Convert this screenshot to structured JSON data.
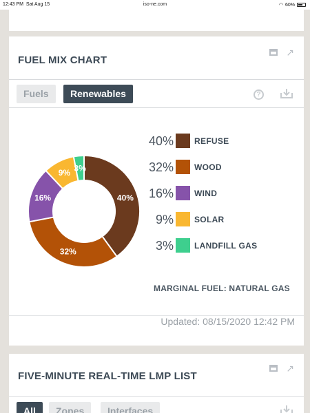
{
  "status_bar": {
    "time": "12:43 PM",
    "date": "Sat Aug 15",
    "url": "iso-ne.com",
    "battery": "60%"
  },
  "fuel_mix": {
    "title": "FUEL MIX CHART",
    "tabs": [
      {
        "label": "Fuels",
        "active": false
      },
      {
        "label": "Renewables",
        "active": true
      }
    ],
    "help_symbol": "?",
    "marginal_fuel": "MARGINAL FUEL: NATURAL GAS",
    "updated": "Updated: 08/15/2020 12:42 PM"
  },
  "chart_data": {
    "type": "pie",
    "variant": "donut",
    "categories": [
      "REFUSE",
      "WOOD",
      "WIND",
      "SOLAR",
      "LANDFILL GAS"
    ],
    "values": [
      40,
      32,
      16,
      9,
      3
    ],
    "labels": [
      "40%",
      "32%",
      "16%",
      "9%",
      "3%"
    ],
    "colors": [
      "#6b3a1e",
      "#b35207",
      "#8653aa",
      "#f9b731",
      "#3ecf8e"
    ],
    "legend": "right"
  },
  "lmp": {
    "title": "FIVE-MINUTE REAL-TIME LMP LIST",
    "tabs": [
      {
        "label": "All",
        "active": true
      },
      {
        "label": "Zones",
        "active": false
      },
      {
        "label": "Interfaces",
        "active": false
      }
    ]
  },
  "icons": {
    "window": "window-icon",
    "expand": "expand-arrow-icon",
    "help": "help-circle-icon",
    "download": "download-icon"
  }
}
